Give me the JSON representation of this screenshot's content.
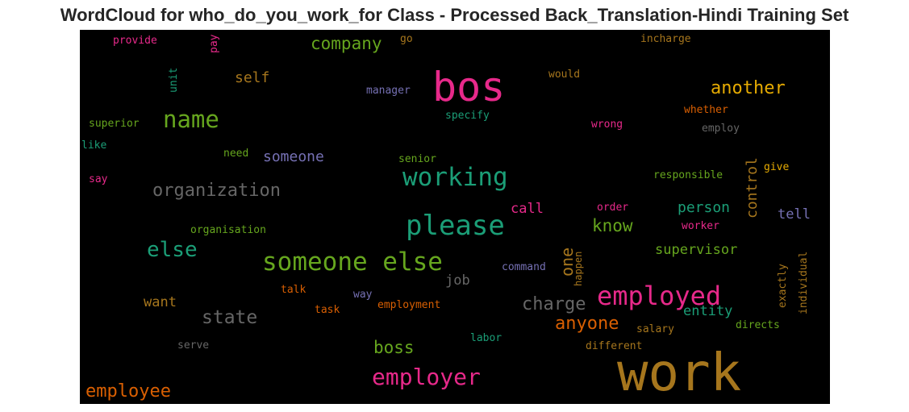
{
  "chart_data": {
    "type": "wordcloud",
    "title": "WordCloud for who_do_you_work_for Class - Processed Back_Translation-Hindi Training Set",
    "background": "#000000",
    "colormap": "Dark2",
    "words": [
      {
        "text": "work",
        "color": "#a6761d"
      },
      {
        "text": "bos",
        "color": "#e7298a"
      },
      {
        "text": "someone else",
        "color": "#66a61e"
      },
      {
        "text": "please",
        "color": "#1b9e77"
      },
      {
        "text": "employed",
        "color": "#e7298a"
      },
      {
        "text": "working",
        "color": "#1b9e77"
      },
      {
        "text": "employer",
        "color": "#e7298a"
      },
      {
        "text": "name",
        "color": "#66a61e"
      },
      {
        "text": "organization",
        "color": "#666666"
      },
      {
        "text": "else",
        "color": "#1b9e77"
      },
      {
        "text": "another",
        "color": "#e6ab02"
      },
      {
        "text": "company",
        "color": "#66a61e"
      },
      {
        "text": "state",
        "color": "#666666"
      },
      {
        "text": "charge",
        "color": "#666666"
      },
      {
        "text": "anyone",
        "color": "#d95f02"
      },
      {
        "text": "employee",
        "color": "#d95f02"
      },
      {
        "text": "boss",
        "color": "#66a61e"
      },
      {
        "text": "know",
        "color": "#66a61e"
      },
      {
        "text": "one",
        "color": "#a6761d"
      },
      {
        "text": "control",
        "color": "#a6761d"
      },
      {
        "text": "someone",
        "color": "#7570b3"
      },
      {
        "text": "self",
        "color": "#a6761d"
      },
      {
        "text": "person",
        "color": "#1b9e77"
      },
      {
        "text": "supervisor",
        "color": "#66a61e"
      },
      {
        "text": "entity",
        "color": "#1b9e77"
      },
      {
        "text": "call",
        "color": "#e7298a"
      },
      {
        "text": "job",
        "color": "#666666"
      },
      {
        "text": "want",
        "color": "#a6761d"
      },
      {
        "text": "tell",
        "color": "#7570b3"
      },
      {
        "text": "manager",
        "color": "#7570b3"
      },
      {
        "text": "whether",
        "color": "#d95f02"
      },
      {
        "text": "wrong",
        "color": "#e7298a"
      },
      {
        "text": "employ",
        "color": "#666666"
      },
      {
        "text": "would",
        "color": "#a6761d"
      },
      {
        "text": "incharge",
        "color": "#a6761d"
      },
      {
        "text": "specify",
        "color": "#1b9e77"
      },
      {
        "text": "superior",
        "color": "#66a61e"
      },
      {
        "text": "like",
        "color": "#1b9e77"
      },
      {
        "text": "need",
        "color": "#66a61e"
      },
      {
        "text": "senior",
        "color": "#66a61e"
      },
      {
        "text": "responsible",
        "color": "#66a61e"
      },
      {
        "text": "give",
        "color": "#e6ab02"
      },
      {
        "text": "say",
        "color": "#e7298a"
      },
      {
        "text": "order",
        "color": "#e7298a"
      },
      {
        "text": "worker",
        "color": "#e7298a"
      },
      {
        "text": "organisation",
        "color": "#66a61e"
      },
      {
        "text": "command",
        "color": "#7570b3"
      },
      {
        "text": "happen",
        "color": "#a6761d"
      },
      {
        "text": "talk",
        "color": "#d95f02"
      },
      {
        "text": "way",
        "color": "#7570b3"
      },
      {
        "text": "task",
        "color": "#d95f02"
      },
      {
        "text": "employment",
        "color": "#d95f02"
      },
      {
        "text": "salary",
        "color": "#a6761d"
      },
      {
        "text": "directs",
        "color": "#66a61e"
      },
      {
        "text": "exactly",
        "color": "#a6761d"
      },
      {
        "text": "individual",
        "color": "#a6761d"
      },
      {
        "text": "serve",
        "color": "#666666"
      },
      {
        "text": "labor",
        "color": "#1b9e77"
      },
      {
        "text": "different",
        "color": "#a6761d"
      },
      {
        "text": "provide",
        "color": "#e7298a"
      },
      {
        "text": "pay",
        "color": "#e7298a"
      },
      {
        "text": "go",
        "color": "#a6761d"
      },
      {
        "text": "unit",
        "color": "#1b9e77"
      }
    ]
  }
}
